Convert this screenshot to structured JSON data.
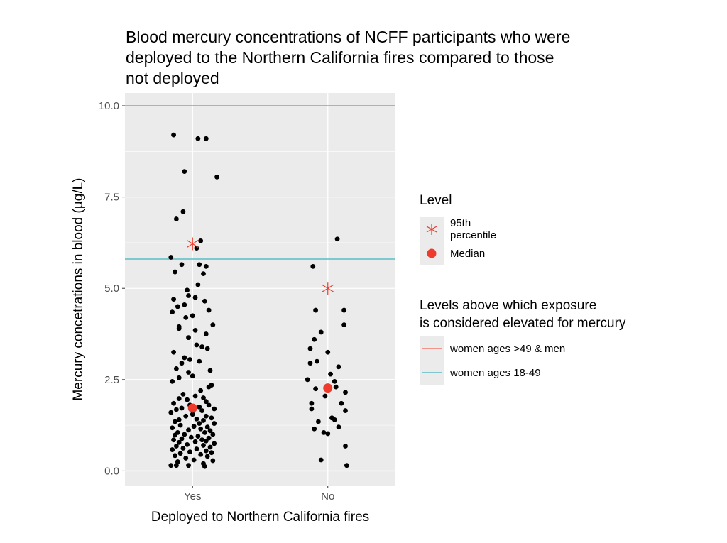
{
  "chart_data": {
    "type": "scatter",
    "title": "Blood mercury concentrations of NCFF participants who were\ndeployed to the Northern California fires compared to those\nnot deployed",
    "xlabel": "Deployed to Northern California fires",
    "ylabel": "Mercury concetrations in blood (µg/L)",
    "categories": [
      "Yes",
      "No"
    ],
    "ylim": [
      -0.4,
      10.35
    ],
    "y_ticks": [
      0.0,
      2.5,
      5.0,
      7.5,
      10.0
    ],
    "y_tick_labels": [
      "0.0",
      "2.5",
      "5.0",
      "7.5",
      "10.0"
    ],
    "grid": true,
    "legend_placement": "right",
    "colors": {
      "panel": "#ebebeb",
      "grid": "#ffffff",
      "points": "#000000",
      "summary": "#ee3b2b",
      "line_high": "#f8766d",
      "line_low": "#5bbcc6",
      "axis_text": "#4d4d4d"
    },
    "series": [
      {
        "category": "Yes",
        "values": [
          9.2,
          9.1,
          9.1,
          8.2,
          8.05,
          7.1,
          6.9,
          6.3,
          6.1,
          5.85,
          5.65,
          5.65,
          5.6,
          5.45,
          5.4,
          5.1,
          4.95,
          4.8,
          4.75,
          4.7,
          4.65,
          4.55,
          4.5,
          4.4,
          4.35,
          4.25,
          4.2,
          4.0,
          3.95,
          3.9,
          3.85,
          3.75,
          3.65,
          3.45,
          3.4,
          3.35,
          3.25,
          3.1,
          3.05,
          3.0,
          2.95,
          2.8,
          2.75,
          2.7,
          2.6,
          2.55,
          2.45,
          2.35,
          2.3,
          2.2,
          2.1,
          2.05,
          2.0,
          1.98,
          1.95,
          1.9,
          1.85,
          1.8,
          1.8,
          1.75,
          1.72,
          1.7,
          1.68,
          1.65,
          1.6,
          1.55,
          1.5,
          1.5,
          1.45,
          1.42,
          1.4,
          1.38,
          1.35,
          1.3,
          1.3,
          1.25,
          1.22,
          1.2,
          1.18,
          1.15,
          1.12,
          1.1,
          1.05,
          1.05,
          1.0,
          1.0,
          0.98,
          0.95,
          0.92,
          0.9,
          0.88,
          0.85,
          0.85,
          0.82,
          0.8,
          0.78,
          0.75,
          0.72,
          0.7,
          0.68,
          0.65,
          0.62,
          0.6,
          0.58,
          0.55,
          0.52,
          0.5,
          0.48,
          0.45,
          0.42,
          0.4,
          0.35,
          0.3,
          0.28,
          0.25,
          0.2,
          0.15,
          0.15,
          0.12,
          0.15
        ],
        "jitter": [
          -0.14,
          0.04,
          0.1,
          -0.06,
          0.18,
          -0.07,
          -0.12,
          0.06,
          0.03,
          -0.16,
          -0.08,
          0.05,
          0.1,
          -0.13,
          0.08,
          0.04,
          -0.04,
          -0.03,
          0.02,
          -0.14,
          0.09,
          -0.06,
          -0.11,
          0.12,
          -0.15,
          0.0,
          -0.05,
          0.15,
          -0.1,
          -0.1,
          0.02,
          0.1,
          -0.03,
          0.03,
          0.07,
          0.11,
          -0.14,
          -0.06,
          -0.02,
          0.05,
          -0.08,
          -0.12,
          0.13,
          -0.03,
          0.0,
          -0.1,
          -0.15,
          0.14,
          0.12,
          0.06,
          -0.07,
          0.02,
          0.08,
          -0.1,
          -0.04,
          0.1,
          -0.14,
          0.12,
          -0.02,
          0.05,
          -0.08,
          0.16,
          -0.12,
          0.07,
          -0.16,
          0.0,
          0.1,
          -0.05,
          0.14,
          0.03,
          -0.1,
          0.08,
          -0.13,
          0.05,
          0.16,
          -0.09,
          0.01,
          0.11,
          -0.15,
          0.06,
          -0.03,
          0.13,
          -0.11,
          0.09,
          -0.06,
          0.15,
          -0.13,
          0.04,
          -0.01,
          0.12,
          -0.08,
          0.07,
          -0.14,
          0.1,
          0.02,
          -0.1,
          0.16,
          -0.04,
          0.08,
          -0.12,
          0.13,
          -0.07,
          0.03,
          -0.15,
          0.1,
          -0.02,
          0.14,
          -0.09,
          0.06,
          -0.13,
          0.11,
          -0.05,
          0.01,
          0.15,
          -0.11,
          0.08,
          -0.16,
          -0.12,
          0.09,
          -0.03
        ]
      },
      {
        "category": "No",
        "values": [
          6.35,
          5.6,
          4.4,
          4.4,
          4.0,
          3.8,
          3.6,
          3.35,
          3.25,
          3.0,
          2.95,
          2.85,
          2.65,
          2.5,
          2.45,
          2.3,
          2.25,
          2.15,
          2.05,
          1.85,
          1.85,
          1.7,
          1.65,
          1.45,
          1.4,
          1.35,
          1.2,
          1.15,
          1.05,
          1.02,
          0.68,
          0.3,
          0.15
        ],
        "jitter": [
          0.07,
          -0.11,
          -0.09,
          0.12,
          0.12,
          -0.05,
          -0.1,
          -0.13,
          0.0,
          -0.08,
          -0.13,
          0.08,
          0.02,
          -0.15,
          0.05,
          0.06,
          -0.09,
          0.13,
          -0.02,
          0.1,
          -0.12,
          -0.12,
          0.13,
          0.03,
          0.05,
          -0.07,
          0.08,
          -0.1,
          -0.03,
          0.0,
          0.13,
          -0.05,
          0.14
        ]
      }
    ],
    "summary_points": [
      {
        "category": "Yes",
        "median": 1.72,
        "p95": 6.22
      },
      {
        "category": "No",
        "median": 2.27,
        "p95": 5.0
      }
    ],
    "reference_lines": [
      {
        "label": "women ages >49 & men",
        "y": 10.0,
        "color": "#f8766d"
      },
      {
        "label": "women ages 18-49",
        "y": 5.8,
        "color": "#5bbcc6"
      }
    ]
  },
  "legend": {
    "level_title": "Level",
    "level_items": [
      {
        "label": "95th percentile",
        "shape": "asterisk"
      },
      {
        "label": "Median",
        "shape": "dot"
      }
    ],
    "lines_title": "Levels above which exposure\nis considered elevated for mercury",
    "line_items": [
      {
        "label": "women ages >49 & men"
      },
      {
        "label": "women ages 18-49"
      }
    ]
  }
}
